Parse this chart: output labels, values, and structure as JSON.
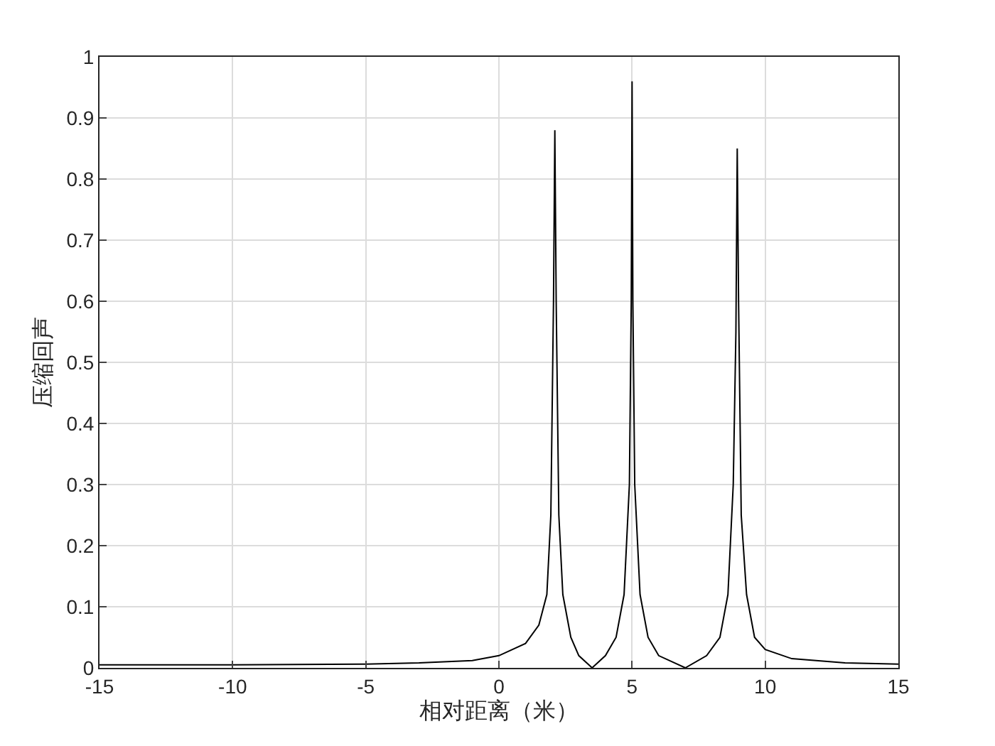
{
  "chart_data": {
    "type": "line",
    "xlabel": "相对距离（米）",
    "ylabel": "压缩回声",
    "x": [
      -15,
      -10,
      -5,
      -3,
      -1,
      0,
      1,
      1.5,
      1.8,
      1.95,
      2.05,
      2.1,
      2.15,
      2.25,
      2.4,
      2.7,
      3.0,
      3.5,
      4.0,
      4.4,
      4.7,
      4.9,
      4.97,
      5.0,
      5.03,
      5.1,
      5.3,
      5.6,
      6.0,
      7.0,
      7.8,
      8.3,
      8.6,
      8.8,
      8.9,
      8.95,
      9.0,
      9.1,
      9.3,
      9.6,
      10,
      11,
      13,
      15
    ],
    "series": [
      {
        "color": "#000000",
        "values": [
          0.005,
          0.005,
          0.006,
          0.008,
          0.012,
          0.02,
          0.04,
          0.07,
          0.12,
          0.25,
          0.6,
          0.88,
          0.6,
          0.25,
          0.12,
          0.05,
          0.02,
          0.0,
          0.02,
          0.05,
          0.12,
          0.3,
          0.6,
          0.96,
          0.6,
          0.3,
          0.12,
          0.05,
          0.02,
          0.0,
          0.02,
          0.05,
          0.12,
          0.3,
          0.55,
          0.85,
          0.6,
          0.25,
          0.12,
          0.05,
          0.03,
          0.015,
          0.008,
          0.006
        ]
      }
    ],
    "xlim": [
      -15,
      15
    ],
    "xticks": [
      -15,
      -10,
      -5,
      0,
      5,
      10,
      15
    ],
    "ylim": [
      0,
      1
    ],
    "yticks": [
      0,
      0.1,
      0.2,
      0.3,
      0.4,
      0.5,
      0.6,
      0.7,
      0.8,
      0.9,
      1
    ],
    "grid": true,
    "marker": "none",
    "line_style": "solid"
  }
}
